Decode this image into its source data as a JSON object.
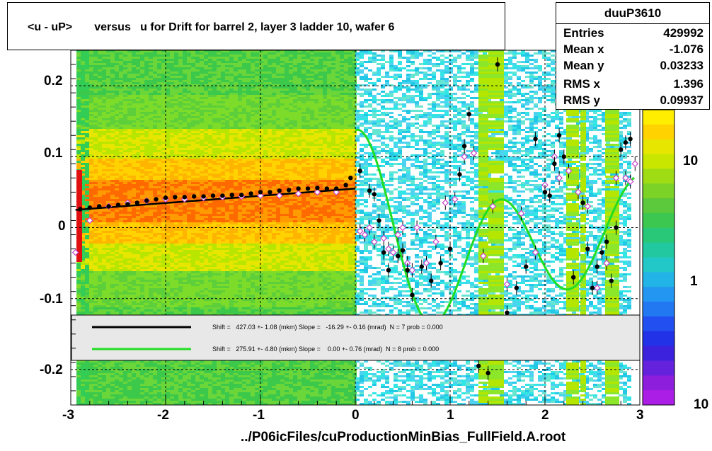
{
  "title": "<u - uP>       versus   u for Drift for barrel 2, layer 3 ladder 10, wafer 6",
  "stats": {
    "name": "duuP3610",
    "rows": [
      {
        "label": "Entries",
        "value": "429992"
      },
      {
        "label": "Mean x",
        "value": "-1.076"
      },
      {
        "label": "Mean y",
        "value": "0.03233"
      },
      {
        "label": "RMS x",
        "value": "1.396"
      },
      {
        "label": "RMS y",
        "value": "0.09937"
      }
    ]
  },
  "x_axis_title": "../P06icFiles/cuProductionMinBias_FullField.A.root",
  "legend": [
    {
      "text": "Shift =   427.03 +- 1.08 (mkm) Slope =   -16.29 +- 0.16 (mrad)  N = 7 prob = 0.000",
      "color": "#000000"
    },
    {
      "text": "Shift =   275.91 +- 4.80 (mkm) Slope =    0.00 +- 0.76 (mrad)  N = 8 prob = 0.000",
      "color": "#22dd22"
    }
  ],
  "colorbar": {
    "labels": [
      "10",
      "1",
      "10"
    ]
  },
  "chart_data": {
    "type": "heatmap",
    "xlim": [
      -3,
      3
    ],
    "ylim": [
      -0.25,
      0.25
    ],
    "x_ticks": [
      "-3",
      "-2",
      "-1",
      "0",
      "1",
      "2",
      "3"
    ],
    "y_ticks": [
      "0.2",
      "0.1",
      "0",
      "-0.1",
      "-0.2"
    ],
    "grid": true,
    "profile_black": {
      "x": [
        -2.9,
        -2.8,
        -2.7,
        -2.6,
        -2.5,
        -2.4,
        -2.3,
        -2.2,
        -2.1,
        -2.0,
        -1.9,
        -1.8,
        -1.7,
        -1.6,
        -1.5,
        -1.4,
        -1.3,
        -1.2,
        -1.1,
        -1.0,
        -0.9,
        -0.8,
        -0.7,
        -0.6,
        -0.5,
        -0.4,
        -0.3,
        -0.2,
        -0.1,
        -0.05,
        0.05,
        0.15,
        0.2,
        0.25,
        0.3,
        0.35,
        0.45,
        0.5,
        0.55,
        0.6,
        0.7,
        0.8,
        0.9,
        1.0,
        1.1,
        1.15,
        1.2,
        1.3,
        1.4,
        1.5,
        1.6,
        1.7,
        1.8,
        1.9,
        2.0,
        2.05,
        2.1,
        2.15,
        2.2,
        2.3,
        2.4,
        2.45,
        2.5,
        2.55,
        2.6,
        2.65,
        2.7,
        2.75,
        2.8,
        2.85,
        2.9
      ],
      "y": [
        0.026,
        0.028,
        0.03,
        0.03,
        0.032,
        0.033,
        0.035,
        0.038,
        0.04,
        0.042,
        0.043,
        0.043,
        0.044,
        0.044,
        0.045,
        0.045,
        0.046,
        0.046,
        0.048,
        0.05,
        0.05,
        0.052,
        0.053,
        0.055,
        0.055,
        0.056,
        0.055,
        0.055,
        0.06,
        0.07,
        0.08,
        0.052,
        0.047,
        0.01,
        -0.035,
        -0.06,
        -0.04,
        -0.032,
        -0.06,
        -0.095,
        -0.055,
        -0.075,
        -0.05,
        -0.03,
        0.075,
        0.115,
        0.16,
        -0.195,
        -0.205,
        0.23,
        -0.12,
        -0.085,
        -0.055,
        0.125,
        0.05,
        0.045,
        0.09,
        0.13,
        0.1,
        -0.07,
        0.035,
        -0.03,
        -0.085,
        -0.055,
        -0.035,
        -0.02,
        -0.075,
        0.0,
        0.11,
        0.12,
        0.125
      ]
    },
    "profile_magenta": {
      "x": [
        -2.95,
        -2.8,
        -2.6,
        -2.4,
        -2.2,
        -2.0,
        -1.8,
        -1.6,
        -1.4,
        -1.2,
        -1.0,
        -0.8,
        -0.6,
        -0.4,
        -0.2,
        0.05,
        0.1,
        0.15,
        0.2,
        0.3,
        0.35,
        0.4,
        0.45,
        0.5,
        0.55,
        0.6,
        0.65,
        0.75,
        0.85,
        0.95,
        1.05,
        1.15,
        1.25,
        1.35,
        1.45,
        1.6,
        1.75,
        1.9,
        2.0,
        2.1,
        2.15,
        2.25,
        2.35,
        2.45,
        2.55,
        2.65,
        2.75,
        2.85,
        2.9,
        2.95
      ],
      "y": [
        -0.035,
        0.01,
        0.03,
        0.035,
        0.038,
        0.04,
        0.04,
        0.042,
        0.043,
        0.044,
        0.045,
        0.045,
        0.048,
        0.05,
        0.05,
        -0.005,
        -0.01,
        0.0,
        -0.02,
        -0.015,
        -0.03,
        -0.035,
        -0.01,
        0.0,
        -0.05,
        -0.06,
        0.0,
        -0.05,
        -0.02,
        0.035,
        0.04,
        0.1,
        0.105,
        -0.04,
        0.03,
        -0.08,
        0.02,
        -0.035,
        0.06,
        0.1,
        0.07,
        0.08,
        0.05,
        0.03,
        -0.085,
        -0.05,
        0.07,
        0.07,
        0.065,
        0.09
      ]
    },
    "fit_black": {
      "x": [
        -2.95,
        0.0
      ],
      "y": [
        0.025,
        0.055
      ]
    },
    "fit_green": {
      "x": [
        0.0,
        2.95
      ]
    }
  }
}
